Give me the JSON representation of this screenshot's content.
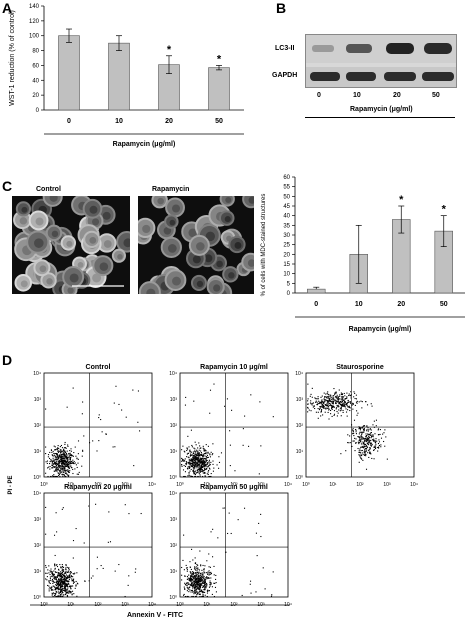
{
  "panels": {
    "A": "A",
    "B": "B",
    "C": "C",
    "D": "D"
  },
  "panel_a": {
    "ylabel": "WST-1 reduction   (% of control)",
    "xlabel": "Rapamycin (μg/ml)"
  },
  "panel_b": {
    "rows": [
      "LC3-II",
      "GAPDH"
    ],
    "lanes": [
      "0",
      "10",
      "20",
      "50"
    ],
    "xlabel": "Rapamycin (μg/ml)"
  },
  "panel_c": {
    "img_labels": [
      "Control",
      "Rapamycin"
    ],
    "ylabel": "% of cells with MDC-stained structures",
    "xlabel": "Rapamycin (μg/ml)"
  },
  "panel_d": {
    "plot_titles": [
      "Control",
      "Rapamycin 10 μg/ml",
      "Staurosporine",
      "Rapamycin 20 μg/ml",
      "Rapamycin 50 μg/ml"
    ],
    "ylabel": "PI - PE",
    "xlabel": "Annexin V - FITC",
    "ticks": [
      "10⁰",
      "10¹",
      "10²",
      "10³",
      "10⁴"
    ]
  },
  "chart_data": [
    {
      "type": "bar",
      "panel": "A",
      "categories": [
        "0",
        "10",
        "20",
        "50"
      ],
      "values": [
        100,
        90,
        61,
        57
      ],
      "errors": [
        9,
        10,
        12,
        3
      ],
      "significance": [
        "",
        "",
        "*",
        "*"
      ],
      "yticks": [
        0,
        20,
        40,
        60,
        80,
        100,
        120,
        140
      ],
      "ylim": [
        0,
        140
      ],
      "ylabel": "WST-1 reduction   (% of control)",
      "xlabel": "Rapamycin (μg/ml)",
      "bar_color": "#c0c0c0"
    },
    {
      "type": "bar",
      "panel": "C",
      "categories": [
        "0",
        "10",
        "20",
        "50"
      ],
      "values": [
        2,
        20,
        38,
        32
      ],
      "errors": [
        1,
        15,
        7,
        8
      ],
      "significance": [
        "",
        "",
        "*",
        "*"
      ],
      "yticks": [
        0,
        5,
        10,
        15,
        20,
        25,
        30,
        35,
        40,
        45,
        50,
        55,
        60
      ],
      "ylim": [
        0,
        60
      ],
      "ylabel": "% of cells with MDC-stained structures",
      "xlabel": "Rapamycin (μg/ml)",
      "bar_color": "#c0c0c0"
    }
  ]
}
